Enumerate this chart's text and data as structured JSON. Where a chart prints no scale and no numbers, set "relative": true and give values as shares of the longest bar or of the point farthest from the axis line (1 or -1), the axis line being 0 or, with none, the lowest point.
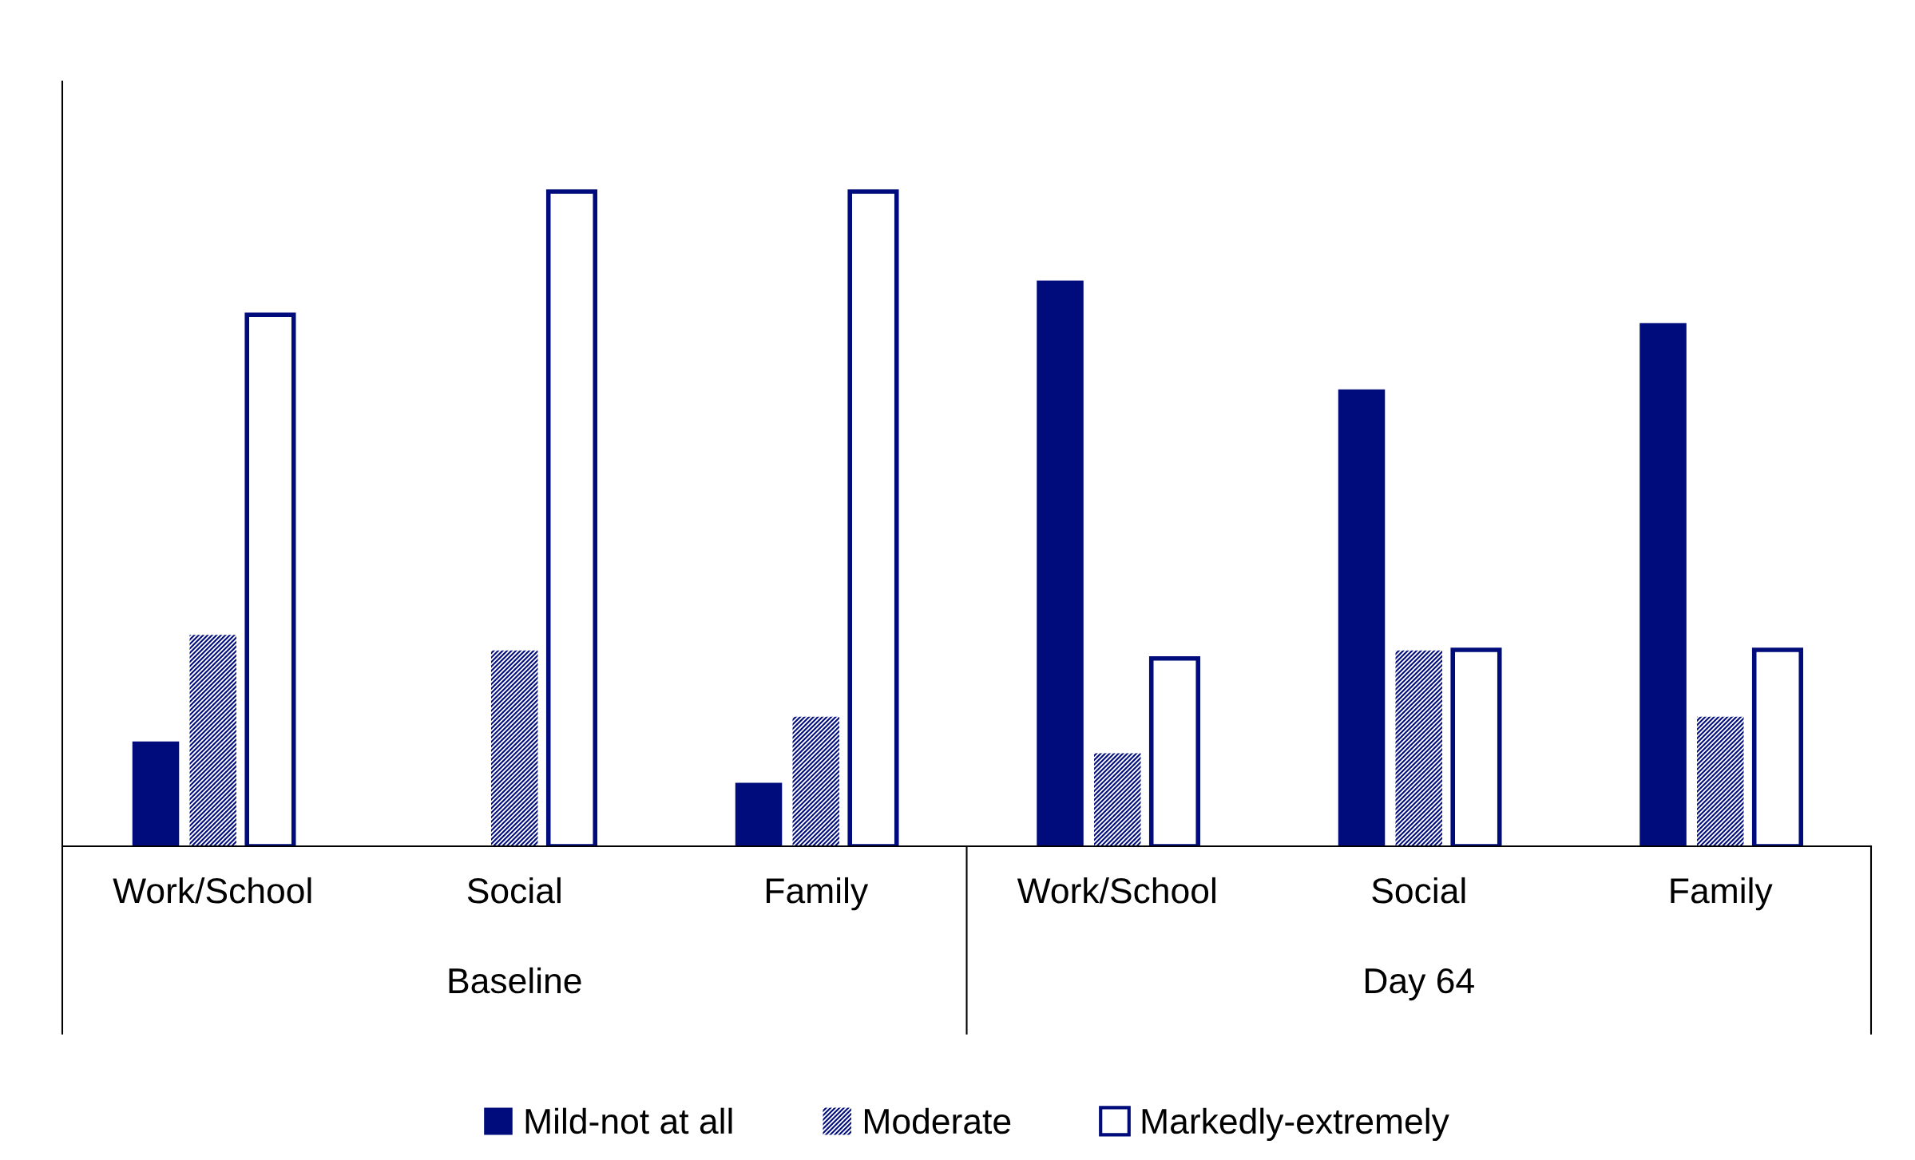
{
  "chart_data": {
    "type": "bar",
    "relative": true,
    "categories": [
      "Work/School",
      "Social",
      "Family",
      "Work/School",
      "Social",
      "Family"
    ],
    "series": [
      {
        "name": "Mild-not at all",
        "color": "#000c7b",
        "values": [
          0.16,
          0,
          0.097,
          0.864,
          0.698,
          0.799
        ]
      },
      {
        "name": "Moderate",
        "color": "#000c7b",
        "values": [
          0.323,
          0.299,
          0.198,
          0.142,
          0.299,
          0.198
        ]
      },
      {
        "name": "Markedly-extremely",
        "color": "#000c7b",
        "values": [
          0.812,
          1.0,
          1.0,
          0.287,
          0.3,
          0.3
        ]
      }
    ],
    "annotations": [
      "Baseline",
      "Day 64"
    ],
    "legend": "bottom",
    "grid": false
  }
}
